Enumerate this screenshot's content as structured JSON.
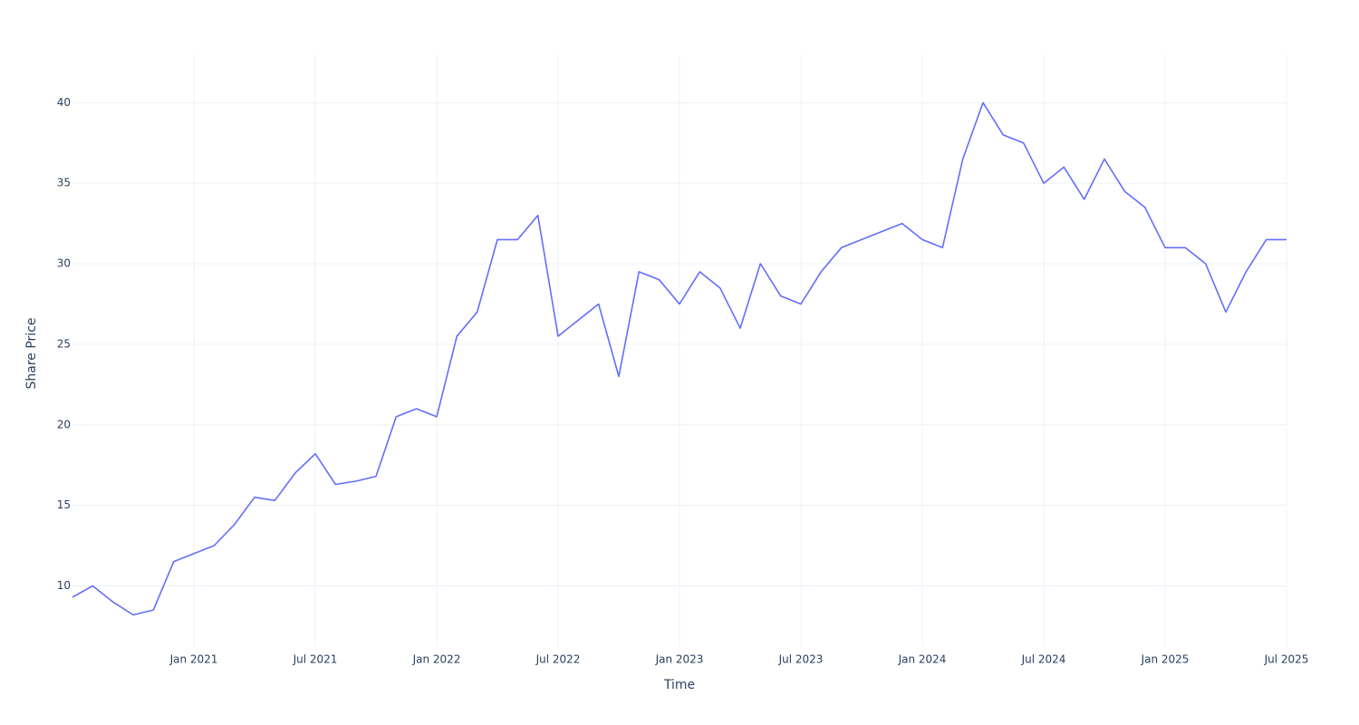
{
  "chart_data": {
    "type": "line",
    "xlabel": "Time",
    "ylabel": "Share Price",
    "x": [
      "2020-07",
      "2020-08",
      "2020-09",
      "2020-10",
      "2020-11",
      "2020-12",
      "2021-01",
      "2021-02",
      "2021-03",
      "2021-04",
      "2021-05",
      "2021-06",
      "2021-07",
      "2021-08",
      "2021-09",
      "2021-10",
      "2021-11",
      "2021-12",
      "2022-01",
      "2022-02",
      "2022-03",
      "2022-04",
      "2022-05",
      "2022-06",
      "2022-07",
      "2022-08",
      "2022-09",
      "2022-10",
      "2022-11",
      "2022-12",
      "2023-01",
      "2023-02",
      "2023-03",
      "2023-04",
      "2023-05",
      "2023-06",
      "2023-07",
      "2023-08",
      "2023-09",
      "2023-10",
      "2023-11",
      "2023-12",
      "2024-01",
      "2024-02",
      "2024-03",
      "2024-04",
      "2024-05",
      "2024-06",
      "2024-07",
      "2024-08",
      "2024-09",
      "2024-10",
      "2024-11",
      "2024-12",
      "2025-01",
      "2025-02",
      "2025-03",
      "2025-04",
      "2025-05",
      "2025-06",
      "2025-07"
    ],
    "series": [
      {
        "name": "Share Price",
        "color": "#636efa",
        "values": [
          9.3,
          10.0,
          9.0,
          8.2,
          8.5,
          11.5,
          12.0,
          12.5,
          13.8,
          15.5,
          15.3,
          17.0,
          18.2,
          16.3,
          16.5,
          16.8,
          20.5,
          21.0,
          20.5,
          25.5,
          27.0,
          31.5,
          31.5,
          33.0,
          25.5,
          26.5,
          27.5,
          23.0,
          29.5,
          29.0,
          27.5,
          29.5,
          28.5,
          26.0,
          30.0,
          28.0,
          27.5,
          29.5,
          31.0,
          31.5,
          32.0,
          32.5,
          31.5,
          31.0,
          36.5,
          40.0,
          38.0,
          37.5,
          35.0,
          36.0,
          34.0,
          36.5,
          34.5,
          33.5,
          31.0,
          31.0,
          30.0,
          27.0,
          29.5,
          31.5,
          31.5
        ]
      }
    ],
    "xlim": [
      "2020-07",
      "2025-07"
    ],
    "xticks": [
      {
        "value": "2021-01",
        "label": "Jan 2021"
      },
      {
        "value": "2021-07",
        "label": "Jul 2021"
      },
      {
        "value": "2022-01",
        "label": "Jan 2022"
      },
      {
        "value": "2022-07",
        "label": "Jul 2022"
      },
      {
        "value": "2023-01",
        "label": "Jan 2023"
      },
      {
        "value": "2023-07",
        "label": "Jul 2023"
      },
      {
        "value": "2024-01",
        "label": "Jan 2024"
      },
      {
        "value": "2024-07",
        "label": "Jul 2024"
      },
      {
        "value": "2025-01",
        "label": "Jan 2025"
      },
      {
        "value": "2025-07",
        "label": "Jul 2025"
      }
    ],
    "ylim": [
      6.2,
      43
    ],
    "yticks": [
      10,
      15,
      20,
      25,
      30,
      35,
      40
    ],
    "grid": true
  }
}
